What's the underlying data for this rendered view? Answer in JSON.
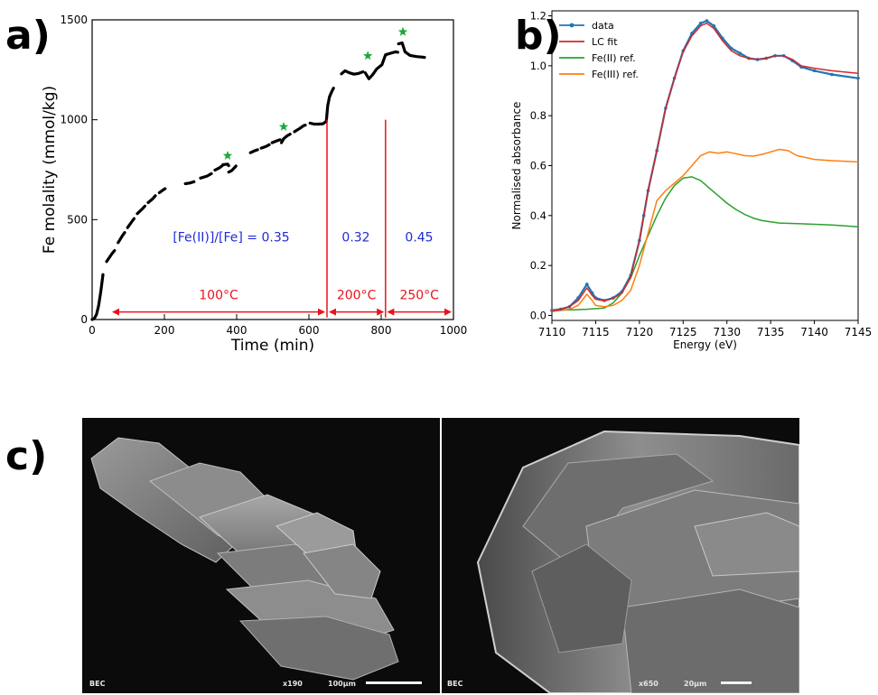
{
  "panels": {
    "a": "a)",
    "b": "b)",
    "c": "c)"
  },
  "chart_data": [
    {
      "type": "scatter",
      "xlabel": "Time (min)",
      "ylabel": "Fe molality (mmol/kg)",
      "xlim": [
        0,
        1000
      ],
      "ylim": [
        0,
        1500
      ],
      "xticks": [
        0,
        200,
        400,
        600,
        800,
        1000
      ],
      "yticks": [
        0,
        500,
        1000,
        1500
      ],
      "grid": false,
      "series": [
        {
          "segments": [
            [
              [
                0,
                0
              ],
              [
                6,
                5
              ],
              [
                12,
                25
              ],
              [
                18,
                70
              ],
              [
                24,
                140
              ],
              [
                30,
                225
              ]
            ],
            [
              [
                40,
                290
              ],
              [
                55,
                330
              ],
              [
                62,
                345
              ]
            ],
            [
              [
                72,
                385
              ],
              [
                84,
                420
              ],
              [
                90,
                435
              ]
            ],
            [
              [
                98,
                460
              ],
              [
                110,
                490
              ],
              [
                116,
                505
              ]
            ],
            [
              [
                125,
                530
              ],
              [
                138,
                552
              ],
              [
                146,
                568
              ]
            ],
            [
              [
                155,
                585
              ],
              [
                168,
                605
              ],
              [
                175,
                620
              ]
            ],
            [
              [
                186,
                635
              ],
              [
                196,
                648
              ],
              [
                202,
                655
              ]
            ],
            [
              [
                258,
                680
              ],
              [
                270,
                683
              ],
              [
                282,
                690
              ]
            ],
            [
              [
                300,
                708
              ],
              [
                318,
                718
              ],
              [
                330,
                730
              ]
            ],
            [
              [
                340,
                748
              ],
              [
                353,
                760
              ],
              [
                360,
                770
              ]
            ],
            [
              [
                362,
                775
              ],
              [
                375,
                778
              ],
              [
                378,
                770
              ]
            ],
            [
              [
                378,
                738
              ],
              [
                386,
                745
              ],
              [
                394,
                760
              ],
              [
                398,
                768
              ]
            ],
            [
              [
                438,
                835
              ],
              [
                450,
                845
              ],
              [
                458,
                850
              ]
            ],
            [
              [
                468,
                858
              ],
              [
                482,
                867
              ],
              [
                490,
                875
              ]
            ],
            [
              [
                498,
                885
              ],
              [
                512,
                895
              ],
              [
                520,
                900
              ]
            ],
            [
              [
                524,
                885
              ],
              [
                530,
                905
              ],
              [
                540,
                920
              ],
              [
                548,
                928
              ]
            ],
            [
              [
                560,
                940
              ],
              [
                575,
                957
              ],
              [
                585,
                970
              ],
              [
                590,
                973
              ]
            ],
            [
              [
                603,
                983
              ],
              [
                615,
                978
              ],
              [
                627,
                978
              ],
              [
                639,
                980
              ],
              [
                645,
                988
              ]
            ],
            [
              [
                648,
                990
              ],
              [
                652,
                1070
              ],
              [
                657,
                1115
              ],
              [
                663,
                1140
              ],
              [
                668,
                1158
              ]
            ],
            [
              [
                690,
                1230
              ],
              [
                700,
                1245
              ],
              [
                712,
                1235
              ],
              [
                725,
                1228
              ],
              [
                738,
                1232
              ],
              [
                750,
                1240
              ]
            ],
            [
              [
                756,
                1235
              ],
              [
                766,
                1205
              ],
              [
                776,
                1225
              ],
              [
                788,
                1255
              ],
              [
                802,
                1275
              ],
              [
                812,
                1325
              ],
              [
                830,
                1335
              ],
              [
                840,
                1340
              ],
              [
                846,
                1338
              ]
            ],
            [
              [
                848,
                1380
              ],
              [
                858,
                1385
              ],
              [
                866,
                1340
              ],
              [
                880,
                1322
              ],
              [
                898,
                1316
              ],
              [
                912,
                1314
              ],
              [
                920,
                1312
              ]
            ]
          ]
        }
      ],
      "stars": [
        [
          375,
          820
        ],
        [
          530,
          965
        ],
        [
          763,
          1320
        ],
        [
          860,
          1440
        ]
      ],
      "colors": {
        "data": "#000000",
        "stars": "#1fa83a",
        "annot_red": "#e8141c",
        "annot_blue": "#1f2bd6"
      },
      "separators": [
        650,
        812
      ],
      "temperature_ranges": [
        {
          "label": "100°C",
          "x0": 55,
          "x1": 645
        },
        {
          "label": "200°C",
          "x0": 655,
          "x1": 808
        },
        {
          "label": "250°C",
          "x0": 816,
          "x1": 995
        }
      ],
      "ratio_labels": [
        {
          "text": "[Fe(II)]/[Fe] = 0.35",
          "x": 385
        },
        {
          "text": "0.32",
          "x": 730
        },
        {
          "text": "0.45",
          "x": 905
        }
      ]
    },
    {
      "type": "line",
      "xlabel": "Energy (eV)",
      "ylabel": "Normalised absorbance",
      "xlim": [
        7110,
        7145
      ],
      "ylim": [
        -0.02,
        1.22
      ],
      "xticks": [
        7110,
        7115,
        7120,
        7125,
        7130,
        7135,
        7140,
        7145
      ],
      "yticks": [
        0.0,
        0.2,
        0.4,
        0.6,
        0.8,
        1.0,
        1.2
      ],
      "grid": false,
      "legend": "top-left",
      "series": [
        {
          "name": "data",
          "color": "#1f77b4",
          "markers": true,
          "points": [
            [
              7110,
              0.02
            ],
            [
              7111,
              0.025
            ],
            [
              7112,
              0.035
            ],
            [
              7113,
              0.07
            ],
            [
              7114,
              0.125
            ],
            [
              7114.6,
              0.09
            ],
            [
              7115,
              0.07
            ],
            [
              7116,
              0.06
            ],
            [
              7117,
              0.07
            ],
            [
              7118,
              0.095
            ],
            [
              7119,
              0.16
            ],
            [
              7120,
              0.3
            ],
            [
              7120.5,
              0.4
            ],
            [
              7121,
              0.5
            ],
            [
              7122,
              0.66
            ],
            [
              7123,
              0.83
            ],
            [
              7124,
              0.95
            ],
            [
              7125,
              1.06
            ],
            [
              7126,
              1.13
            ],
            [
              7127,
              1.17
            ],
            [
              7127.7,
              1.18
            ],
            [
              7128.5,
              1.16
            ],
            [
              7129.5,
              1.11
            ],
            [
              7130.5,
              1.07
            ],
            [
              7131.5,
              1.05
            ],
            [
              7132.5,
              1.03
            ],
            [
              7133.5,
              1.025
            ],
            [
              7134.5,
              1.03
            ],
            [
              7135.5,
              1.04
            ],
            [
              7136.5,
              1.04
            ],
            [
              7137.5,
              1.02
            ],
            [
              7138.5,
              0.995
            ],
            [
              7140,
              0.98
            ],
            [
              7142,
              0.965
            ],
            [
              7145,
              0.95
            ]
          ]
        },
        {
          "name": "LC fit",
          "color": "#d62728",
          "points": [
            [
              7110,
              0.02
            ],
            [
              7111,
              0.025
            ],
            [
              7112,
              0.035
            ],
            [
              7113,
              0.06
            ],
            [
              7114,
              0.11
            ],
            [
              7114.6,
              0.08
            ],
            [
              7115,
              0.065
            ],
            [
              7116,
              0.058
            ],
            [
              7117,
              0.068
            ],
            [
              7118,
              0.09
            ],
            [
              7119,
              0.155
            ],
            [
              7120,
              0.3
            ],
            [
              7120.5,
              0.4
            ],
            [
              7121,
              0.5
            ],
            [
              7122,
              0.66
            ],
            [
              7123,
              0.83
            ],
            [
              7124,
              0.95
            ],
            [
              7125,
              1.055
            ],
            [
              7126,
              1.12
            ],
            [
              7127,
              1.16
            ],
            [
              7127.7,
              1.17
            ],
            [
              7128.5,
              1.15
            ],
            [
              7129.5,
              1.1
            ],
            [
              7130.5,
              1.06
            ],
            [
              7131.5,
              1.04
            ],
            [
              7132.5,
              1.03
            ],
            [
              7133.5,
              1.025
            ],
            [
              7134.5,
              1.03
            ],
            [
              7135.5,
              1.04
            ],
            [
              7136.5,
              1.04
            ],
            [
              7137.5,
              1.025
            ],
            [
              7138.5,
              1.0
            ],
            [
              7140,
              0.99
            ],
            [
              7142,
              0.98
            ],
            [
              7145,
              0.97
            ]
          ]
        },
        {
          "name": "Fe(II) ref.",
          "color": "#2ca02c",
          "points": [
            [
              7110,
              0.02
            ],
            [
              7112,
              0.022
            ],
            [
              7114,
              0.025
            ],
            [
              7116,
              0.03
            ],
            [
              7117,
              0.05
            ],
            [
              7118,
              0.09
            ],
            [
              7119,
              0.15
            ],
            [
              7120,
              0.24
            ],
            [
              7121,
              0.32
            ],
            [
              7122,
              0.4
            ],
            [
              7123,
              0.47
            ],
            [
              7124,
              0.52
            ],
            [
              7125,
              0.55
            ],
            [
              7126,
              0.555
            ],
            [
              7127,
              0.54
            ],
            [
              7128,
              0.51
            ],
            [
              7129,
              0.48
            ],
            [
              7130,
              0.45
            ],
            [
              7131,
              0.425
            ],
            [
              7132,
              0.405
            ],
            [
              7133,
              0.39
            ],
            [
              7134,
              0.38
            ],
            [
              7136,
              0.37
            ],
            [
              7138,
              0.368
            ],
            [
              7140,
              0.365
            ],
            [
              7142,
              0.362
            ],
            [
              7145,
              0.355
            ]
          ]
        },
        {
          "name": "Fe(III) ref.",
          "color": "#ff7f0e",
          "points": [
            [
              7110,
              0.015
            ],
            [
              7112,
              0.025
            ],
            [
              7113,
              0.04
            ],
            [
              7114,
              0.085
            ],
            [
              7114.6,
              0.06
            ],
            [
              7115,
              0.04
            ],
            [
              7116,
              0.035
            ],
            [
              7117,
              0.04
            ],
            [
              7118,
              0.06
            ],
            [
              7119,
              0.1
            ],
            [
              7120,
              0.2
            ],
            [
              7121,
              0.33
            ],
            [
              7122,
              0.46
            ],
            [
              7123,
              0.5
            ],
            [
              7124,
              0.53
            ],
            [
              7125,
              0.56
            ],
            [
              7126,
              0.6
            ],
            [
              7127,
              0.64
            ],
            [
              7128,
              0.655
            ],
            [
              7129,
              0.65
            ],
            [
              7130,
              0.655
            ],
            [
              7131,
              0.648
            ],
            [
              7132,
              0.64
            ],
            [
              7133,
              0.638
            ],
            [
              7134,
              0.645
            ],
            [
              7135,
              0.655
            ],
            [
              7136,
              0.665
            ],
            [
              7137,
              0.66
            ],
            [
              7138,
              0.64
            ],
            [
              7140,
              0.625
            ],
            [
              7142,
              0.62
            ],
            [
              7145,
              0.615
            ]
          ]
        }
      ]
    }
  ],
  "sem_images": [
    {
      "mode": "BEC",
      "magnification": "x190",
      "scale": "100μm"
    },
    {
      "mode": "BEC",
      "magnification": "x650",
      "scale": "20μm"
    }
  ]
}
